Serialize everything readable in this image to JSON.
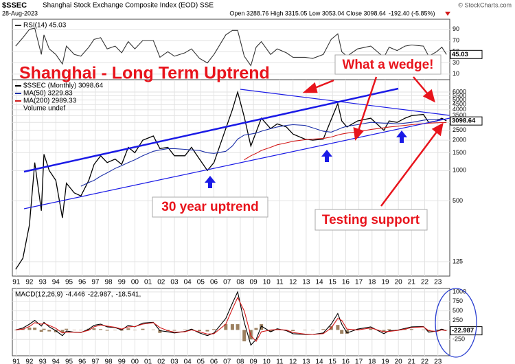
{
  "header": {
    "symbol": "$SSEC",
    "name": "Shanghai Stock Exchange Composite Index (EOD) SSE",
    "date": "28-Aug-2023",
    "quote": "Open 3288.76 High 3315.05 Low 3053.04 Close 3098.64",
    "change": "-192.40 (-5.85%)",
    "credit": "© StockCharts.com"
  },
  "chart_data": [
    {
      "type": "line",
      "xlim": [
        1990.7,
        2023.9
      ],
      "ylim": [
        0,
        108
      ],
      "yticks": [
        10,
        30,
        50,
        70,
        90
      ],
      "grid": true,
      "last_label": "45.03",
      "x": [
        1990.95,
        1991.5,
        1992.0,
        1992.4,
        1992.9,
        1993.1,
        1993.5,
        1994.0,
        1994.5,
        1994.8,
        1995.4,
        1995.9,
        1996.5,
        1996.9,
        1997.4,
        1997.9,
        1998.5,
        1999.0,
        1999.5,
        2000.0,
        2000.6,
        2001.4,
        2001.9,
        2002.5,
        2003.0,
        2003.8,
        2004.3,
        2004.9,
        2005.5,
        2006.0,
        2006.9,
        2007.4,
        2007.8,
        2008.3,
        2008.8,
        2009.2,
        2009.6,
        2010.3,
        2010.8,
        2011.5,
        2012.0,
        2012.9,
        2013.5,
        2014.3,
        2014.9,
        2015.4,
        2015.7,
        2016.1,
        2016.9,
        2017.9,
        2018.9,
        2019.3,
        2019.9,
        2020.5,
        2021.0,
        2021.9,
        2022.3,
        2022.9,
        2023.3,
        2023.65
      ],
      "series": [
        {
          "name": "RSI(14) 45.03",
          "color": "#333333",
          "values": [
            60,
            75,
            90,
            92,
            45,
            80,
            55,
            45,
            28,
            60,
            45,
            42,
            58,
            72,
            75,
            55,
            60,
            48,
            68,
            55,
            70,
            70,
            40,
            50,
            42,
            48,
            55,
            38,
            30,
            45,
            80,
            88,
            88,
            42,
            25,
            58,
            68,
            45,
            55,
            48,
            40,
            40,
            38,
            45,
            72,
            82,
            50,
            42,
            55,
            60,
            40,
            58,
            52,
            60,
            62,
            60,
            42,
            50,
            58,
            45.03
          ]
        }
      ]
    },
    {
      "type": "line",
      "log": true,
      "xlim": [
        1990.7,
        2023.9
      ],
      "ylim": [
        90,
        7950
      ],
      "yticks": [
        125,
        500,
        1000,
        1500,
        2000,
        2500,
        3000,
        3500,
        4000,
        4500,
        5000,
        5500,
        6000
      ],
      "grid": true,
      "last_label": "3098.64",
      "xticks": [
        {
          "value": 1991,
          "label": "91"
        },
        {
          "value": 1992,
          "label": "92"
        },
        {
          "value": 1993,
          "label": "93"
        },
        {
          "value": 1994,
          "label": "94"
        },
        {
          "value": 1995,
          "label": "95"
        },
        {
          "value": 1996,
          "label": "96"
        },
        {
          "value": 1997,
          "label": "97"
        },
        {
          "value": 1998,
          "label": "98"
        },
        {
          "value": 1999,
          "label": "99"
        },
        {
          "value": 2000,
          "label": "00"
        },
        {
          "value": 2001,
          "label": "01"
        },
        {
          "value": 2002,
          "label": "02"
        },
        {
          "value": 2003,
          "label": "03"
        },
        {
          "value": 2004,
          "label": "04"
        },
        {
          "value": 2005,
          "label": "05"
        },
        {
          "value": 2006,
          "label": "06"
        },
        {
          "value": 2007,
          "label": "07"
        },
        {
          "value": 2008,
          "label": "08"
        },
        {
          "value": 2009,
          "label": "09"
        },
        {
          "value": 2010,
          "label": "10"
        },
        {
          "value": 2011,
          "label": "11"
        },
        {
          "value": 2012,
          "label": "12"
        },
        {
          "value": 2013,
          "label": "13"
        },
        {
          "value": 2014,
          "label": "14"
        },
        {
          "value": 2015,
          "label": "15"
        },
        {
          "value": 2016,
          "label": "16"
        },
        {
          "value": 2017,
          "label": "17"
        },
        {
          "value": 2018,
          "label": "18"
        },
        {
          "value": 2019,
          "label": "19"
        },
        {
          "value": 2020,
          "label": "20"
        },
        {
          "value": 2021,
          "label": "21"
        },
        {
          "value": 2022,
          "label": "22"
        },
        {
          "value": 2023,
          "label": "23"
        }
      ],
      "note": "Volume undef",
      "annotations": [
        "Shanghai - Long Term Uptrend",
        "What a wedge!",
        "30 year uptrend",
        "Testing support"
      ],
      "x": [
        1990.95,
        1991.5,
        1992.0,
        1992.4,
        1992.9,
        1993.1,
        1993.5,
        1994.0,
        1994.5,
        1994.8,
        1995.4,
        1995.9,
        1996.5,
        1996.9,
        1997.4,
        1997.9,
        1998.5,
        1999.0,
        1999.5,
        2000.0,
        2000.6,
        2001.4,
        2001.9,
        2002.5,
        2003.0,
        2003.8,
        2004.3,
        2004.9,
        2005.5,
        2006.0,
        2006.9,
        2007.4,
        2007.8,
        2008.3,
        2008.8,
        2009.2,
        2009.6,
        2010.3,
        2010.8,
        2011.5,
        2012.0,
        2012.9,
        2013.5,
        2014.3,
        2014.9,
        2015.4,
        2015.7,
        2016.1,
        2016.9,
        2017.9,
        2018.9,
        2019.3,
        2019.9,
        2020.5,
        2021.0,
        2021.9,
        2022.3,
        2022.9,
        2023.3,
        2023.65
      ],
      "series": [
        {
          "name": "$SSEC (Monthly) 3098.64",
          "color": "#000000",
          "values": [
            105,
            135,
            290,
            1200,
            400,
            1450,
            1000,
            800,
            340,
            750,
            600,
            560,
            800,
            1150,
            1400,
            1200,
            1300,
            1150,
            1700,
            1500,
            2000,
            2200,
            1650,
            1700,
            1400,
            1400,
            1700,
            1300,
            1000,
            1200,
            2600,
            4000,
            6000,
            3400,
            1750,
            2400,
            3300,
            2600,
            2900,
            2700,
            2300,
            2050,
            2000,
            2050,
            3200,
            4600,
            3100,
            2700,
            3100,
            3300,
            2500,
            3100,
            3000,
            3300,
            3500,
            3600,
            3000,
            3100,
            3300,
            3098.64
          ]
        },
        {
          "name": "MA(50) 3229.83",
          "color": "#1c2fa8",
          "values": [
            null,
            null,
            null,
            null,
            null,
            null,
            null,
            null,
            null,
            null,
            null,
            700,
            760,
            800,
            880,
            950,
            1050,
            1120,
            1200,
            1280,
            1400,
            1550,
            1600,
            1650,
            1650,
            1620,
            1600,
            1580,
            1500,
            1480,
            1550,
            1750,
            2050,
            2250,
            2300,
            2350,
            2450,
            2600,
            2700,
            2800,
            2850,
            2800,
            2650,
            2450,
            2400,
            2550,
            2650,
            2750,
            2850,
            3000,
            2950,
            2950,
            2900,
            2950,
            3000,
            3150,
            3200,
            3200,
            3230,
            3229.83
          ]
        },
        {
          "name": "MA(200) 2989.33",
          "color": "#d21a1a",
          "values": [
            null,
            null,
            null,
            null,
            null,
            null,
            null,
            null,
            null,
            null,
            null,
            null,
            null,
            null,
            null,
            null,
            null,
            null,
            null,
            null,
            null,
            null,
            null,
            null,
            null,
            null,
            null,
            null,
            null,
            null,
            null,
            null,
            null,
            1280,
            1400,
            1480,
            1580,
            1700,
            1800,
            1880,
            1950,
            2020,
            2050,
            2080,
            2150,
            2250,
            2300,
            2350,
            2420,
            2550,
            2650,
            2700,
            2750,
            2800,
            2850,
            2920,
            2950,
            2970,
            2985,
            2989.33
          ]
        }
      ]
    },
    {
      "type": "line",
      "title": "MACD(12,26,9)",
      "xlim": [
        1990.7,
        2023.9
      ],
      "ylim": [
        -680,
        1090
      ],
      "yticks": [
        -250,
        250,
        500,
        750,
        1000
      ],
      "grid": true,
      "last_label": "-22.987",
      "xticks": [
        {
          "value": 1991,
          "label": "91"
        },
        {
          "value": 1992,
          "label": "92"
        },
        {
          "value": 1993,
          "label": "93"
        },
        {
          "value": 1994,
          "label": "94"
        },
        {
          "value": 1995,
          "label": "95"
        },
        {
          "value": 1996,
          "label": "96"
        },
        {
          "value": 1997,
          "label": "97"
        },
        {
          "value": 1998,
          "label": "98"
        },
        {
          "value": 1999,
          "label": "99"
        },
        {
          "value": 2000,
          "label": "00"
        },
        {
          "value": 2001,
          "label": "01"
        },
        {
          "value": 2002,
          "label": "02"
        },
        {
          "value": 2003,
          "label": "03"
        },
        {
          "value": 2004,
          "label": "04"
        },
        {
          "value": 2005,
          "label": "05"
        },
        {
          "value": 2006,
          "label": "06"
        },
        {
          "value": 2007,
          "label": "07"
        },
        {
          "value": 2008,
          "label": "08"
        },
        {
          "value": 2009,
          "label": "09"
        },
        {
          "value": 2010,
          "label": "10"
        },
        {
          "value": 2011,
          "label": "11"
        },
        {
          "value": 2012,
          "label": "12"
        },
        {
          "value": 2013,
          "label": "13"
        },
        {
          "value": 2014,
          "label": "14"
        },
        {
          "value": 2015,
          "label": "15"
        },
        {
          "value": 2016,
          "label": "16"
        },
        {
          "value": 2017,
          "label": "17"
        },
        {
          "value": 2018,
          "label": "18"
        },
        {
          "value": 2019,
          "label": "19"
        },
        {
          "value": 2020,
          "label": "20"
        },
        {
          "value": 2021,
          "label": "21"
        },
        {
          "value": 2022,
          "label": "22"
        },
        {
          "value": 2023,
          "label": "23"
        }
      ],
      "x": [
        1990.95,
        1991.5,
        1992.0,
        1992.4,
        1992.9,
        1993.1,
        1993.5,
        1994.0,
        1994.5,
        1994.8,
        1995.4,
        1995.9,
        1996.5,
        1996.9,
        1997.4,
        1997.9,
        1998.5,
        1999.0,
        1999.5,
        2000.0,
        2000.6,
        2001.4,
        2001.9,
        2002.5,
        2003.0,
        2003.8,
        2004.3,
        2004.9,
        2005.5,
        2006.0,
        2006.9,
        2007.4,
        2007.8,
        2008.3,
        2008.8,
        2009.2,
        2009.6,
        2010.3,
        2010.8,
        2011.5,
        2012.0,
        2012.9,
        2013.5,
        2014.3,
        2014.9,
        2015.4,
        2015.7,
        2016.1,
        2016.9,
        2017.9,
        2018.9,
        2019.3,
        2019.9,
        2020.5,
        2021.0,
        2021.9,
        2022.3,
        2022.9,
        2023.3,
        2023.65
      ],
      "series": [
        {
          "name": "-4.446",
          "color": "#9c8060",
          "kind": "bar",
          "values": [
            0,
            30,
            60,
            60,
            -50,
            30,
            -40,
            -60,
            -70,
            30,
            0,
            -5,
            30,
            40,
            20,
            -20,
            -10,
            -20,
            40,
            -10,
            30,
            10,
            -80,
            -30,
            -20,
            10,
            20,
            -30,
            -40,
            20,
            150,
            150,
            150,
            -300,
            -250,
            50,
            150,
            -50,
            20,
            -15,
            -30,
            -10,
            0,
            20,
            100,
            130,
            -100,
            -100,
            20,
            30,
            -50,
            20,
            5,
            20,
            20,
            10,
            -40,
            10,
            20,
            -4.446
          ]
        },
        {
          "name": "-22.987,",
          "color": "#000000",
          "values": [
            0,
            50,
            150,
            250,
            100,
            200,
            80,
            -20,
            -150,
            -30,
            -60,
            -70,
            20,
            120,
            150,
            80,
            60,
            0,
            120,
            80,
            180,
            200,
            -20,
            -50,
            -80,
            -40,
            20,
            -80,
            -150,
            -80,
            300,
            700,
            1000,
            200,
            -400,
            -250,
            100,
            -50,
            30,
            -20,
            -100,
            -120,
            -120,
            -80,
            150,
            430,
            150,
            -80,
            20,
            80,
            -100,
            -20,
            -10,
            40,
            80,
            90,
            -60,
            -30,
            20,
            -22.987
          ]
        },
        {
          "name": "-18.541,",
          "color": "#d21a1a",
          "values": [
            0,
            20,
            90,
            190,
            150,
            170,
            120,
            40,
            -80,
            -60,
            -60,
            -65,
            -10,
            80,
            130,
            100,
            70,
            20,
            80,
            90,
            150,
            190,
            60,
            -20,
            -60,
            -50,
            0,
            -50,
            -110,
            -100,
            150,
            550,
            850,
            500,
            -150,
            -300,
            -50,
            0,
            10,
            -5,
            -70,
            -110,
            -120,
            -100,
            50,
            300,
            250,
            20,
            0,
            50,
            -50,
            -40,
            -15,
            20,
            60,
            80,
            -20,
            -40,
            0,
            -18.541
          ]
        }
      ]
    }
  ]
}
